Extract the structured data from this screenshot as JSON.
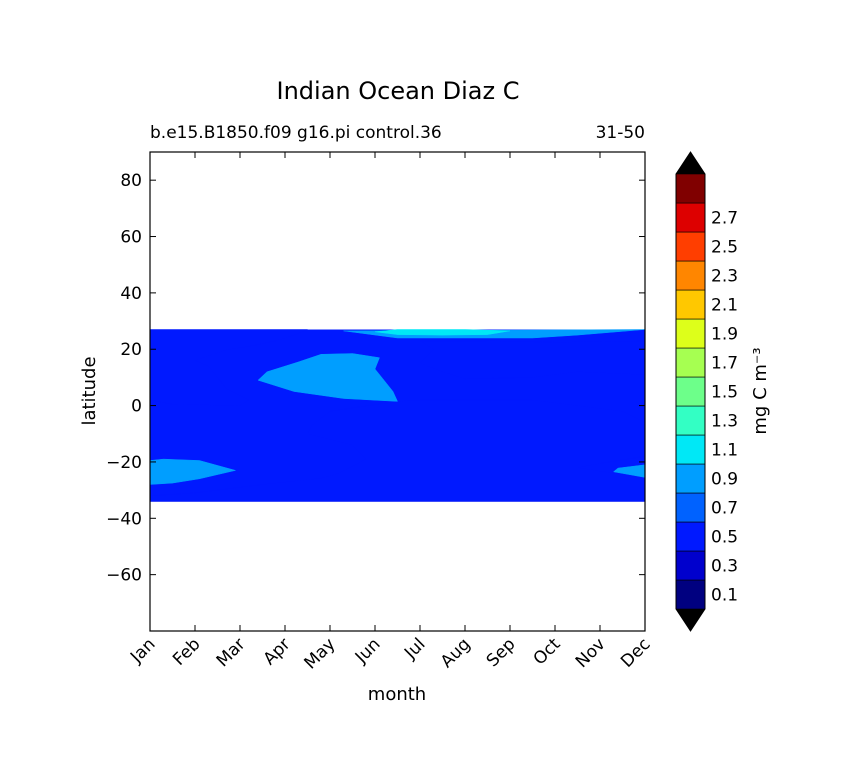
{
  "chart_data": {
    "type": "heatmap",
    "title": "Indian Ocean Diaz C",
    "subtitle_left": "b.e15.B1850.f09 g16.pi control.36",
    "subtitle_right": "31-50",
    "xlabel": "month",
    "ylabel": "latitude",
    "x_categories": [
      "Jan",
      "Feb",
      "Mar",
      "Apr",
      "May",
      "Jun",
      "Jul",
      "Aug",
      "Sep",
      "Oct",
      "Nov",
      "Dec"
    ],
    "ylim": [
      -80,
      90
    ],
    "yticks": [
      80,
      60,
      40,
      20,
      0,
      -20,
      -40,
      -60
    ],
    "ytick_labels": [
      "80",
      "60",
      "40",
      "20",
      "0",
      "−20",
      "−40",
      "−60"
    ],
    "data_lat_range": [
      -34,
      27
    ],
    "colorbar": {
      "label": "mg C m⁻³",
      "levels": [
        0.0,
        0.1,
        0.2,
        0.3,
        0.4,
        0.5,
        0.6,
        0.7,
        0.8,
        0.9,
        1.0,
        1.1,
        1.2,
        1.3,
        1.4,
        1.5,
        1.6,
        1.7,
        1.8,
        1.9,
        2.0,
        2.1,
        2.2,
        2.3,
        2.4,
        2.5,
        2.6,
        2.7,
        2.8
      ],
      "tick_labels": [
        "0.1",
        "0.3",
        "0.5",
        "0.7",
        "0.9",
        "1.1",
        "1.3",
        "1.5",
        "1.7",
        "1.9",
        "2.1",
        "2.3",
        "2.5",
        "2.7"
      ],
      "band_colors": [
        "#000080",
        "#0000cd",
        "#0019ff",
        "#0062ff",
        "#009eff",
        "#00e8f6",
        "#33ffc4",
        "#6dff8a",
        "#a6ff51",
        "#ddff1a",
        "#ffc800",
        "#ff8600",
        "#ff3e00",
        "#dd0000",
        "#800000"
      ],
      "extend_under": "#000000",
      "extend_over": "#000000"
    },
    "fields": [
      {
        "value_range": [
          0.2,
          0.4
        ],
        "color": "#0000cd",
        "name": "deep-band-south-edge",
        "polygon": [
          [
            0,
            -33.5
          ],
          [
            5.5,
            -33
          ],
          [
            7.5,
            -31.5
          ],
          [
            9,
            -31
          ],
          [
            11,
            -32.5
          ],
          [
            11,
            -34
          ],
          [
            0,
            -34
          ]
        ]
      },
      {
        "value_range": [
          0.3,
          0.5
        ],
        "color": "#0019ff",
        "name": "southern-core",
        "polygon": [
          [
            0,
            -34
          ],
          [
            11,
            -34
          ],
          [
            11,
            -26
          ],
          [
            10.7,
            -25
          ],
          [
            9.5,
            -22
          ],
          [
            10,
            -20.5
          ],
          [
            11,
            -18
          ],
          [
            11,
            -6
          ],
          [
            10.5,
            -2
          ],
          [
            8.5,
            2
          ],
          [
            6,
            2
          ],
          [
            5.5,
            1.5
          ],
          [
            4,
            -2
          ],
          [
            3.6,
            -7
          ],
          [
            3.5,
            -10
          ],
          [
            4.5,
            -14
          ],
          [
            4.8,
            -19
          ],
          [
            4.2,
            -24
          ],
          [
            3.8,
            -25.8
          ],
          [
            2.5,
            -28
          ],
          [
            1,
            -31
          ],
          [
            0,
            -32
          ]
        ]
      },
      {
        "value_range": [
          0.3,
          0.5
        ],
        "color": "#0019ff",
        "name": "northwest-core",
        "polygon": [
          [
            0,
            27
          ],
          [
            3.5,
            27
          ],
          [
            3.2,
            25
          ],
          [
            2.8,
            23
          ],
          [
            2.2,
            21
          ],
          [
            1.7,
            19.8
          ],
          [
            1,
            16
          ],
          [
            1.3,
            14
          ],
          [
            1.5,
            10
          ],
          [
            1.7,
            6
          ],
          [
            2.2,
            2
          ],
          [
            2,
            0
          ],
          [
            0.5,
            0.5
          ],
          [
            0,
            2
          ]
        ]
      },
      {
        "value_range": [
          0.3,
          0.5
        ],
        "color": "#0019ff",
        "name": "northeast-core",
        "polygon": [
          [
            6,
            23
          ],
          [
            7.5,
            23
          ],
          [
            9,
            22.5
          ],
          [
            11,
            23
          ],
          [
            11,
            11
          ],
          [
            9.5,
            12
          ],
          [
            8.5,
            10
          ],
          [
            7,
            9.5
          ],
          [
            6.5,
            12
          ],
          [
            6,
            15
          ],
          [
            6.3,
            20
          ]
        ]
      },
      {
        "value_range": [
          0.5,
          0.7
        ],
        "color": "#009eff",
        "name": "arabian-patch",
        "polygon": [
          [
            2.6,
            12
          ],
          [
            2.4,
            9
          ],
          [
            3.2,
            5
          ],
          [
            4.3,
            2.5
          ],
          [
            5.5,
            1.5
          ],
          [
            5.4,
            5
          ],
          [
            5.2,
            9
          ],
          [
            5,
            13
          ],
          [
            5.1,
            17
          ],
          [
            4.5,
            18.5
          ],
          [
            3.8,
            18.2
          ],
          [
            3.3,
            15.5
          ]
        ]
      },
      {
        "value_range": [
          0.5,
          0.7
        ],
        "color": "#009eff",
        "name": "southwest-patch",
        "polygon": [
          [
            0,
            -28
          ],
          [
            0.5,
            -27.5
          ],
          [
            1.1,
            -26
          ],
          [
            1.9,
            -23
          ],
          [
            1.1,
            -19.5
          ],
          [
            0.3,
            -19
          ],
          [
            0,
            -19.5
          ]
        ]
      },
      {
        "value_range": [
          0.5,
          0.7
        ],
        "color": "#009eff",
        "name": "southeast-patch",
        "polygon": [
          [
            10.3,
            -23.5
          ],
          [
            11,
            -25.5
          ],
          [
            11,
            -21
          ],
          [
            10.4,
            -22.2
          ]
        ]
      },
      {
        "value_range": [
          0.5,
          0.7
        ],
        "color": "#009eff",
        "name": "north-patch",
        "polygon": [
          [
            4.3,
            26.5
          ],
          [
            5.5,
            24
          ],
          [
            7.5,
            24
          ],
          [
            8.5,
            24
          ],
          [
            9.5,
            25
          ],
          [
            11,
            27
          ]
        ]
      },
      {
        "value_range": [
          0.7,
          0.9
        ],
        "color": "#00e8f6",
        "name": "north-peak",
        "polygon": [
          [
            5,
            26.2
          ],
          [
            5.5,
            25.2
          ],
          [
            6.5,
            25
          ],
          [
            7.5,
            25.2
          ],
          [
            8,
            26.5
          ],
          [
            7,
            27
          ],
          [
            5.5,
            27
          ]
        ]
      }
    ]
  }
}
